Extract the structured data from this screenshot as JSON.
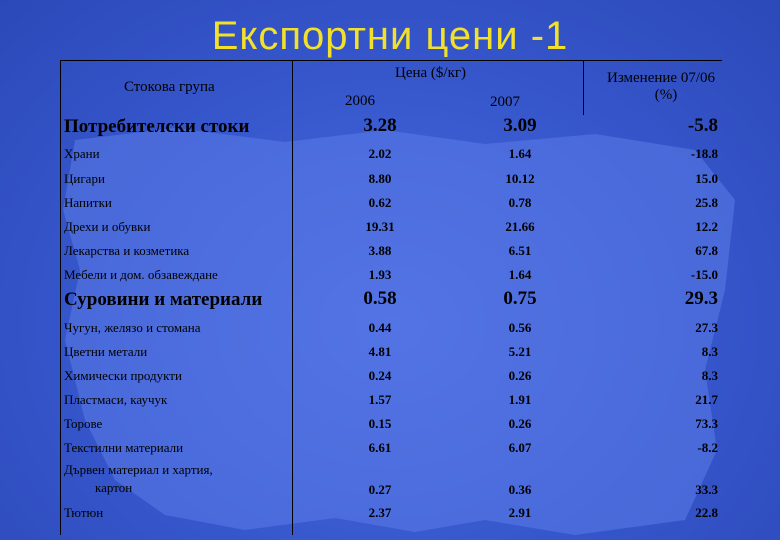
{
  "title": "Експортни цени -1",
  "header": {
    "group_label": "Стокова група",
    "price_label": "Цена ($/кг)",
    "year_2006": "2006",
    "year_2007": "2007",
    "change_label_line1": "Изменение 07/06",
    "change_label_line2": "(%)"
  },
  "rows": [
    {
      "name": "Потребителски стоки",
      "v2006": "3.28",
      "v2007": "3.09",
      "change": "-5.8",
      "type": "group"
    },
    {
      "name": "Храни",
      "v2006": "2.02",
      "v2007": "1.64",
      "change": "-18.8",
      "type": "item"
    },
    {
      "name": "Цигари",
      "v2006": "8.80",
      "v2007": "10.12",
      "change": "15.0",
      "type": "item"
    },
    {
      "name": "Напитки",
      "v2006": "0.62",
      "v2007": "0.78",
      "change": "25.8",
      "type": "item"
    },
    {
      "name": "Дрехи и обувки",
      "v2006": "19.31",
      "v2007": "21.66",
      "change": "12.2",
      "type": "item"
    },
    {
      "name": "Лекарства и козметика",
      "v2006": "3.88",
      "v2007": "6.51",
      "change": "67.8",
      "type": "item"
    },
    {
      "name": "Мебели и дом. обзавеждане",
      "v2006": "1.93",
      "v2007": "1.64",
      "change": "-15.0",
      "type": "item"
    },
    {
      "name": "Суровини и материали",
      "v2006": "0.58",
      "v2007": "0.75",
      "change": "29.3",
      "type": "group"
    },
    {
      "name": "Чугун, желязо и стомана",
      "v2006": "0.44",
      "v2007": "0.56",
      "change": "27.3",
      "type": "item"
    },
    {
      "name": "Цветни метали",
      "v2006": "4.81",
      "v2007": "5.21",
      "change": "8.3",
      "type": "item"
    },
    {
      "name": "Химически продукти",
      "v2006": "0.24",
      "v2007": "0.26",
      "change": "8.3",
      "type": "item"
    },
    {
      "name": "Пластмаси, каучук",
      "v2006": "1.57",
      "v2007": "1.91",
      "change": "21.7",
      "type": "item"
    },
    {
      "name": "Торове",
      "v2006": "0.15",
      "v2007": "0.26",
      "change": "73.3",
      "type": "item"
    },
    {
      "name": "Текстилни материали",
      "v2006": "6.61",
      "v2007": "6.07",
      "change": "-8.2",
      "type": "item"
    },
    {
      "name": "Дървен материал и хартия,",
      "name_line2": "картон",
      "v2006": "0.27",
      "v2007": "0.36",
      "change": "33.3",
      "type": "item"
    },
    {
      "name": "Тютюн",
      "v2006": "2.37",
      "v2007": "2.91",
      "change": "22.8",
      "type": "item"
    }
  ],
  "colors": {
    "background": "#3656cc",
    "map_fill": "#5b7ce8",
    "title": "#f2e02a"
  }
}
